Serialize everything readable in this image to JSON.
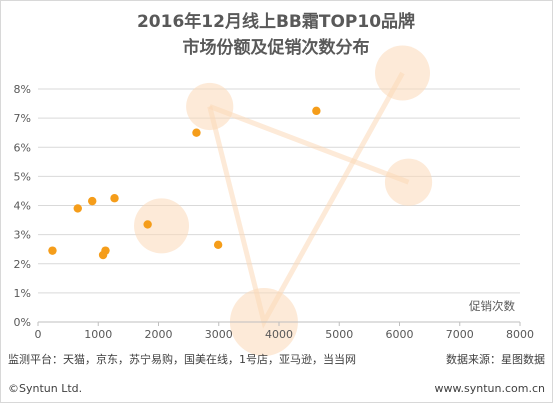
{
  "chart_data": {
    "type": "scatter",
    "title_lines": [
      "2016年12月线上BB霜TOP10品牌",
      "市场份额及促销次数分布"
    ],
    "xlabel": "促销次数",
    "ylabel": "",
    "xlim": [
      0,
      8000
    ],
    "ylim": [
      0,
      0.08
    ],
    "x_ticks": [
      0,
      1000,
      2000,
      3000,
      4000,
      5000,
      6000,
      7000,
      8000
    ],
    "y_ticks": [
      0,
      0.01,
      0.02,
      0.03,
      0.04,
      0.05,
      0.06,
      0.07,
      0.08
    ],
    "x_tick_labels": [
      "0",
      "1000",
      "2000",
      "3000",
      "4000",
      "5000",
      "6000",
      "7000",
      "8000"
    ],
    "y_tick_labels": [
      "0%",
      "1%",
      "2%",
      "3%",
      "4%",
      "5%",
      "6%",
      "7%",
      "8%"
    ],
    "grid": true,
    "points": [
      {
        "x": 240,
        "y": 0.0245
      },
      {
        "x": 660,
        "y": 0.039
      },
      {
        "x": 900,
        "y": 0.0415
      },
      {
        "x": 1080,
        "y": 0.023
      },
      {
        "x": 1120,
        "y": 0.0245
      },
      {
        "x": 1270,
        "y": 0.0425
      },
      {
        "x": 1820,
        "y": 0.0335
      },
      {
        "x": 2630,
        "y": 0.065
      },
      {
        "x": 2990,
        "y": 0.0265
      },
      {
        "x": 4620,
        "y": 0.0725
      }
    ],
    "point_color": "#f59d1a",
    "decorative_bubbles": [
      {
        "x": 2050,
        "y": 0.033,
        "r": 0.75
      },
      {
        "x": 2850,
        "y": 0.074,
        "r": 0.6
      },
      {
        "x": 6150,
        "y": 0.048,
        "r": 0.6
      },
      {
        "x": 6050,
        "y": 0.0855,
        "r": 0.75
      },
      {
        "x": 3750,
        "y": 0.0,
        "r": 1.0
      }
    ],
    "decorative_path": [
      [
        2850,
        0.074
      ],
      [
        3750,
        0.0
      ],
      [
        6050,
        0.0855
      ]
    ],
    "decorative_path2": [
      [
        2850,
        0.074
      ],
      [
        6150,
        0.048
      ]
    ],
    "decorative_color": "#fbd9b8"
  },
  "footer": {
    "sources": "监测平台：天猫，京东，苏宁易购，国美在线，1号店，亚马逊，当当网",
    "data_source": "数据来源：星图数据",
    "copyright": "©Syntun Ltd.",
    "website": "www.syntun.com.cn"
  }
}
